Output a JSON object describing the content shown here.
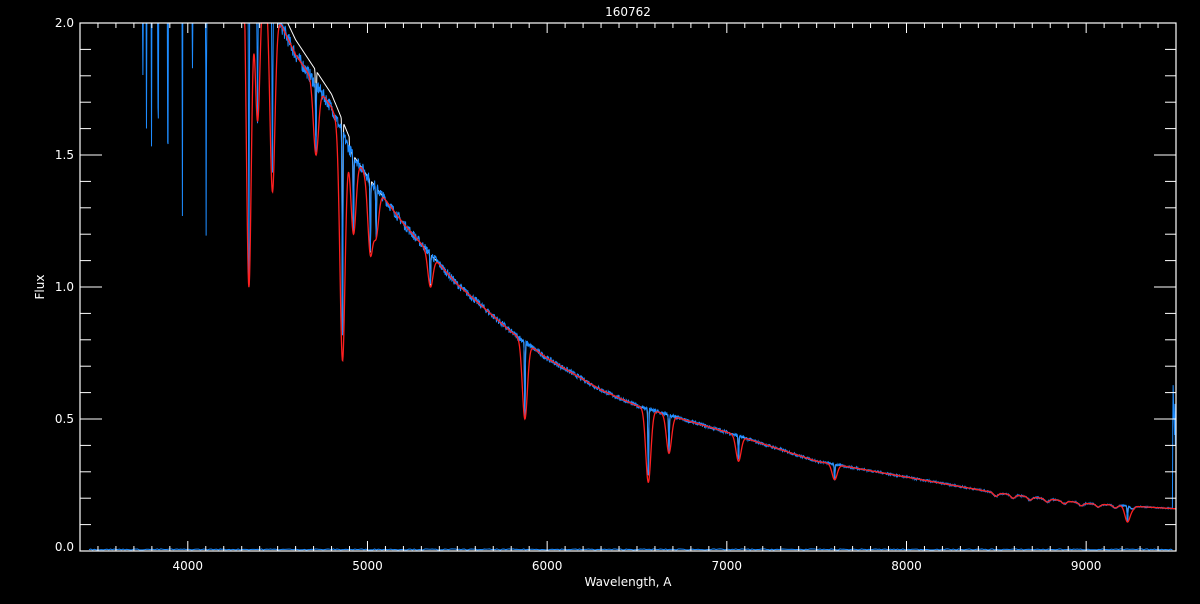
{
  "chart_data": {
    "type": "line",
    "title": "160762",
    "xlabel": "Wavelength, A",
    "ylabel": "Flux",
    "xlim": [
      3400,
      9500
    ],
    "ylim": [
      0,
      2.0
    ],
    "xticks": [
      4000,
      5000,
      6000,
      7000,
      8000,
      9000
    ],
    "xtick_labels": [
      "4000",
      "5000",
      "6000",
      "7000",
      "8000",
      "9000"
    ],
    "yticks": [
      0,
      0.5,
      1.0,
      1.5,
      2.0
    ],
    "ytick_labels": [
      "0.0",
      "0.5",
      "1.0",
      "1.5",
      "2.0"
    ],
    "grid": false,
    "background": "#000000",
    "continuum": {
      "x": [
        4500,
        4600,
        4700,
        4800,
        4900,
        5000,
        5200,
        5500,
        5800,
        6000,
        6300,
        6500,
        7000,
        7500,
        8000,
        8500,
        9000,
        9500
      ],
      "y": [
        2.02,
        1.88,
        1.78,
        1.68,
        1.52,
        1.42,
        1.24,
        1.01,
        0.83,
        0.73,
        0.61,
        0.55,
        0.45,
        0.34,
        0.28,
        0.22,
        0.18,
        0.16
      ]
    },
    "absorption_lines": [
      {
        "x": 3735,
        "y": 1.9
      },
      {
        "x": 3750,
        "y": 1.8
      },
      {
        "x": 3770,
        "y": 1.6
      },
      {
        "x": 3798,
        "y": 1.52
      },
      {
        "x": 3835,
        "y": 1.4
      },
      {
        "x": 3889,
        "y": 1.3
      },
      {
        "x": 3970,
        "y": 1.26
      },
      {
        "x": 4026,
        "y": 1.85
      },
      {
        "x": 4102,
        "y": 1.19
      },
      {
        "x": 4340,
        "y": 1.0
      },
      {
        "x": 4388,
        "y": 1.63
      },
      {
        "x": 4471,
        "y": 1.36
      },
      {
        "x": 4713,
        "y": 1.5
      },
      {
        "x": 4861,
        "y": 0.72
      },
      {
        "x": 4922,
        "y": 1.2
      },
      {
        "x": 5016,
        "y": 1.13
      },
      {
        "x": 5048,
        "y": 1.2
      },
      {
        "x": 5350,
        "y": 1.0
      },
      {
        "x": 5876,
        "y": 0.5
      },
      {
        "x": 6563,
        "y": 0.26
      },
      {
        "x": 6678,
        "y": 0.37
      },
      {
        "x": 7065,
        "y": 0.34
      },
      {
        "x": 7600,
        "y": 0.27
      },
      {
        "x": 9230,
        "y": 0.11
      }
    ],
    "emission_spike": {
      "x": 9490,
      "y": 0.63
    },
    "series": [
      {
        "color": "#ffffff"
      },
      {
        "color": "#1e8cff"
      },
      {
        "color": "#ff2020"
      }
    ],
    "error_series_color": "#1e8cff"
  }
}
